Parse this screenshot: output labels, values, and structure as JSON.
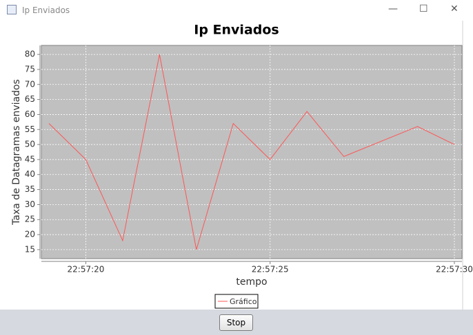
{
  "window": {
    "title": "Ip Enviados"
  },
  "chart_data": {
    "type": "line",
    "title": "Ip Enviados",
    "xlabel": "tempo",
    "ylabel": "Taxa de Datagramas enviados",
    "x": [
      "22:57:19",
      "22:57:20",
      "22:57:21",
      "22:57:22",
      "22:57:23",
      "22:57:24",
      "22:57:25",
      "22:57:26",
      "22:57:27",
      "22:57:28",
      "22:57:29",
      "22:57:30"
    ],
    "series": [
      {
        "name": "Gráfico",
        "color": "#ff5555",
        "values": [
          57,
          45,
          18,
          80,
          15,
          57,
          45,
          61,
          46,
          51,
          56,
          50
        ]
      }
    ],
    "xlim": [
      "22:57:19",
      "22:57:30"
    ],
    "xticks": [
      "22:57:20",
      "22:57:25",
      "22:57:30"
    ],
    "ylim": [
      12,
      83
    ],
    "yticks": [
      15,
      20,
      25,
      30,
      35,
      40,
      45,
      50,
      55,
      60,
      65,
      70,
      75,
      80
    ],
    "grid": true,
    "legend": "bottom"
  },
  "buttons": [
    "Stop"
  ]
}
